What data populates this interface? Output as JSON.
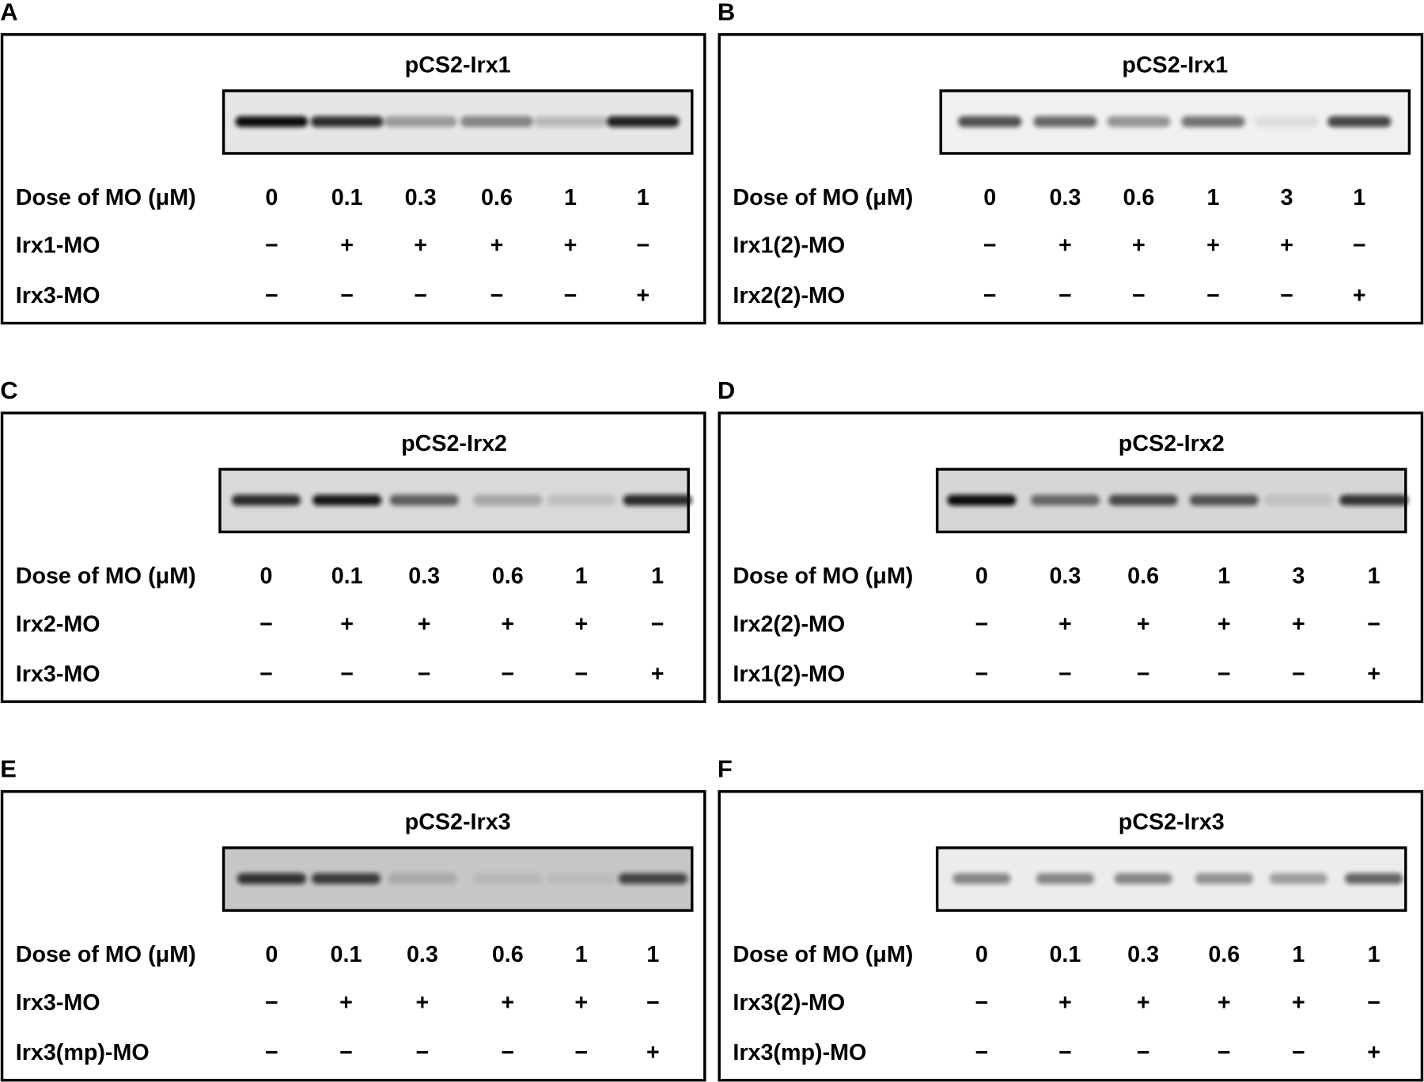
{
  "panels": [
    {
      "letter": "A",
      "title": "pCS2-Irx1",
      "dose_label": "Dose of MO (μM)",
      "doses": [
        0,
        0.1,
        0.3,
        0.6,
        1,
        1
      ],
      "rows": [
        {
          "label": "Irx1-MO",
          "signs": [
            "−",
            "+",
            "+",
            "+",
            "+",
            "−"
          ]
        },
        {
          "label": "Irx3-MO",
          "signs": [
            "−",
            "−",
            "−",
            "−",
            "−",
            "+"
          ]
        }
      ]
    },
    {
      "letter": "B",
      "title": "pCS2-Irx1",
      "dose_label": "Dose of MO (μM)",
      "doses": [
        0,
        0.3,
        0.6,
        1,
        3,
        1
      ],
      "rows": [
        {
          "label": "Irx1(2)-MO",
          "signs": [
            "−",
            "+",
            "+",
            "+",
            "+",
            "−"
          ]
        },
        {
          "label": "Irx2(2)-MO",
          "signs": [
            "−",
            "−",
            "−",
            "−",
            "−",
            "+"
          ]
        }
      ]
    },
    {
      "letter": "C",
      "title": "pCS2-Irx2",
      "dose_label": "Dose of MO (μM)",
      "doses": [
        0,
        0.1,
        0.3,
        0.6,
        1,
        1
      ],
      "rows": [
        {
          "label": "Irx2-MO",
          "signs": [
            "−",
            "+",
            "+",
            "+",
            "+",
            "−"
          ]
        },
        {
          "label": "Irx3-MO",
          "signs": [
            "−",
            "−",
            "−",
            "−",
            "−",
            "+"
          ]
        }
      ]
    },
    {
      "letter": "D",
      "title": "pCS2-Irx2",
      "dose_label": "Dose of MO (μM)",
      "doses": [
        0,
        0.3,
        0.6,
        1,
        3,
        1
      ],
      "rows": [
        {
          "label": "Irx2(2)-MO",
          "signs": [
            "−",
            "+",
            "+",
            "+",
            "+",
            "−"
          ]
        },
        {
          "label": "Irx1(2)-MO",
          "signs": [
            "−",
            "−",
            "−",
            "−",
            "−",
            "+"
          ]
        }
      ]
    },
    {
      "letter": "E",
      "title": "pCS2-Irx3",
      "dose_label": "Dose of MO (μM)",
      "doses": [
        0,
        0.1,
        0.3,
        0.6,
        1,
        1
      ],
      "rows": [
        {
          "label": "Irx3-MO",
          "signs": [
            "−",
            "+",
            "+",
            "+",
            "+",
            "−"
          ]
        },
        {
          "label": "Irx3(mp)-MO",
          "signs": [
            "−",
            "−",
            "−",
            "−",
            "−",
            "+"
          ]
        }
      ]
    },
    {
      "letter": "F",
      "title": "pCS2-Irx3",
      "dose_label": "Dose of MO (μM)",
      "doses": [
        0,
        0.1,
        0.3,
        0.6,
        1,
        1
      ],
      "rows": [
        {
          "label": "Irx3(2)-MO",
          "signs": [
            "−",
            "+",
            "+",
            "+",
            "+",
            "−"
          ]
        },
        {
          "label": "Irx3(mp)-MO",
          "signs": [
            "−",
            "−",
            "−",
            "−",
            "−",
            "+"
          ]
        }
      ]
    }
  ]
}
